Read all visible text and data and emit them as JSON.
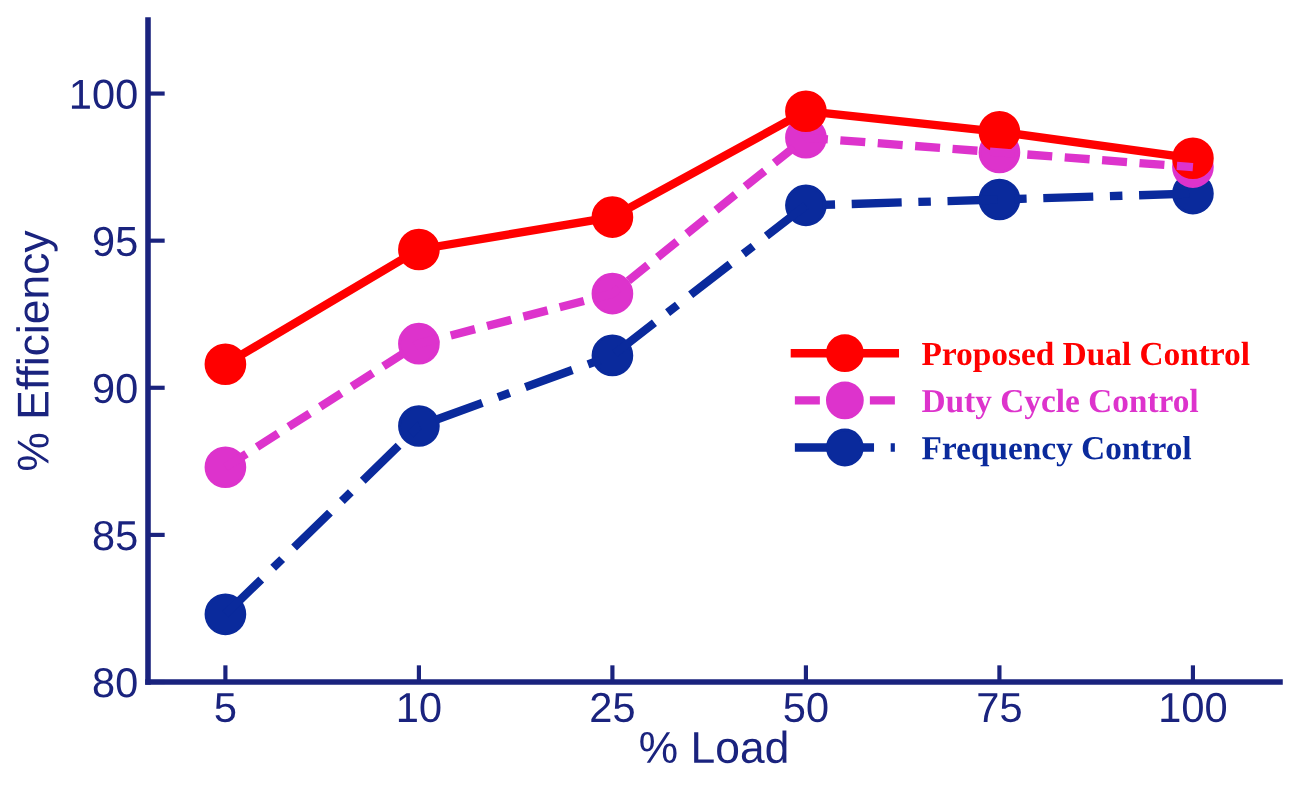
{
  "chart_data": {
    "type": "line",
    "xlabel": "% Load",
    "ylabel": "% Efficiency",
    "categories": [
      "5",
      "10",
      "25",
      "50",
      "75",
      "100"
    ],
    "series": [
      {
        "name": "Proposed Dual Control",
        "color": "#ff0000",
        "line_style": "solid",
        "values": [
          90.8,
          94.7,
          95.8,
          99.4,
          98.7,
          97.8
        ]
      },
      {
        "name": "Duty Cycle Control",
        "color": "#dd33cc",
        "line_style": "dashed",
        "values": [
          87.3,
          91.5,
          93.2,
          98.5,
          98.0,
          97.5
        ]
      },
      {
        "name": "Frequency Control",
        "color": "#0a2a9c",
        "line_style": "dashdot",
        "values": [
          82.3,
          88.7,
          91.1,
          96.2,
          96.4,
          96.6
        ]
      }
    ],
    "marker": "circle",
    "ylim": [
      80,
      102.5
    ],
    "yticks": [
      80,
      85,
      90,
      95,
      100
    ],
    "grid": false,
    "legend": "right"
  }
}
